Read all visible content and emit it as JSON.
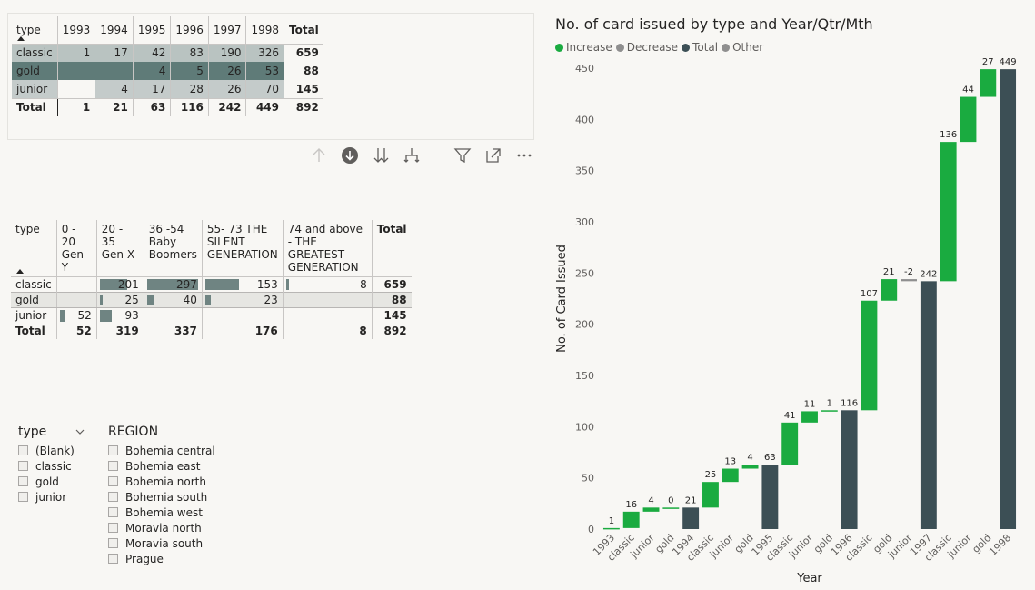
{
  "matrix1": {
    "row_header": "type",
    "columns": [
      "1993",
      "1994",
      "1995",
      "1996",
      "1997",
      "1998"
    ],
    "total_label": "Total",
    "rows": [
      {
        "label": "classic",
        "values": [
          "1",
          "17",
          "42",
          "83",
          "190",
          "326"
        ],
        "total": "659",
        "shade": "#b9c3c1"
      },
      {
        "label": "gold",
        "values": [
          "",
          "",
          "4",
          "5",
          "26",
          "53"
        ],
        "total": "88",
        "shade": "#5f7b78"
      },
      {
        "label": "junior",
        "values": [
          "",
          "4",
          "17",
          "28",
          "26",
          "70"
        ],
        "total": "145",
        "shade": "#c4cbca"
      }
    ],
    "totals": {
      "label": "Total",
      "values": [
        "1",
        "21",
        "63",
        "116",
        "242",
        "449"
      ],
      "total": "892"
    }
  },
  "toolbar": {
    "icons": [
      "drill-up-icon",
      "drill-down-mode-icon",
      "expand-next-level-icon",
      "expand-hierarchy-icon",
      "filter-icon",
      "focus-mode-icon",
      "more-options-icon"
    ]
  },
  "matrix2": {
    "row_header": "type",
    "columns": [
      "0 - 20 Gen Y",
      "20 - 35 Gen X",
      "36 -54 Baby Boomers",
      "55- 73 THE SILENT GENERATION",
      "74 and above - THE GREATEST GENERATION"
    ],
    "total_label": "Total",
    "rows": [
      {
        "label": "classic",
        "values": [
          "",
          "201",
          "297",
          "153",
          "8"
        ],
        "fill": [
          0,
          0.68,
          1.0,
          0.52,
          0.03
        ],
        "total": "659"
      },
      {
        "label": "gold",
        "values": [
          "",
          "25",
          "40",
          "23",
          ""
        ],
        "fill": [
          0,
          0.08,
          0.13,
          0.08,
          0
        ],
        "total": "88"
      },
      {
        "label": "junior",
        "values": [
          "52",
          "93",
          "",
          "",
          ""
        ],
        "fill": [
          0.18,
          0.31,
          0,
          0,
          0
        ],
        "total": "145"
      }
    ],
    "totals": {
      "label": "Total",
      "values": [
        "52",
        "319",
        "337",
        "176",
        "8"
      ],
      "total": "892"
    }
  },
  "slicer_type": {
    "title": "type",
    "items": [
      "(Blank)",
      "classic",
      "gold",
      "junior"
    ]
  },
  "slicer_region": {
    "title": "REGION",
    "items": [
      "Bohemia central",
      "Bohemia east",
      "Bohemia north",
      "Bohemia south",
      "Bohemia west",
      "Moravia north",
      "Moravia south",
      "Prague"
    ]
  },
  "legend": [
    {
      "label": "Increase",
      "color": "#1aab40"
    },
    {
      "label": "Decrease",
      "color": "#8f8f8f"
    },
    {
      "label": "Total",
      "color": "#3c4f55"
    },
    {
      "label": "Other",
      "color": "#8f8f8f"
    }
  ],
  "chart_data": {
    "type": "waterfall",
    "title": "No. of card issued by type and Year/Qtr/Mth",
    "xlabel": "Year",
    "ylabel": "No. of Card Issued",
    "ylim": [
      0,
      450
    ],
    "yticks": [
      0,
      50,
      100,
      150,
      200,
      250,
      300,
      350,
      400,
      450
    ],
    "colors": {
      "increase": "#1aab40",
      "decrease": "#8f8f8f",
      "total": "#3c4f55"
    },
    "steps": [
      {
        "category": "1993",
        "kind": "increase",
        "value": 1,
        "label": "1"
      },
      {
        "category": "classic",
        "kind": "increase",
        "value": 16,
        "label": "16"
      },
      {
        "category": "junior",
        "kind": "increase",
        "value": 4,
        "label": "4"
      },
      {
        "category": "gold",
        "kind": "increase",
        "value": 0,
        "label": "0"
      },
      {
        "category": "1994",
        "kind": "total",
        "value": 21,
        "label": "21"
      },
      {
        "category": "classic",
        "kind": "increase",
        "value": 25,
        "label": "25"
      },
      {
        "category": "junior",
        "kind": "increase",
        "value": 13,
        "label": "13"
      },
      {
        "category": "gold",
        "kind": "increase",
        "value": 4,
        "label": "4"
      },
      {
        "category": "1995",
        "kind": "total",
        "value": 63,
        "label": "63"
      },
      {
        "category": "classic",
        "kind": "increase",
        "value": 41,
        "label": "41"
      },
      {
        "category": "junior",
        "kind": "increase",
        "value": 11,
        "label": "11"
      },
      {
        "category": "gold",
        "kind": "increase",
        "value": 1,
        "label": "1"
      },
      {
        "category": "1996",
        "kind": "total",
        "value": 116,
        "label": "116"
      },
      {
        "category": "classic",
        "kind": "increase",
        "value": 107,
        "label": "107"
      },
      {
        "category": "gold",
        "kind": "increase",
        "value": 21,
        "label": "21"
      },
      {
        "category": "junior",
        "kind": "decrease",
        "value": -2,
        "label": "-2"
      },
      {
        "category": "1997",
        "kind": "total",
        "value": 242,
        "label": "242"
      },
      {
        "category": "classic",
        "kind": "increase",
        "value": 136,
        "label": "136"
      },
      {
        "category": "junior",
        "kind": "increase",
        "value": 44,
        "label": "44"
      },
      {
        "category": "gold",
        "kind": "increase",
        "value": 27,
        "label": "27"
      },
      {
        "category": "1998",
        "kind": "total",
        "value": 449,
        "label": "449"
      }
    ]
  }
}
